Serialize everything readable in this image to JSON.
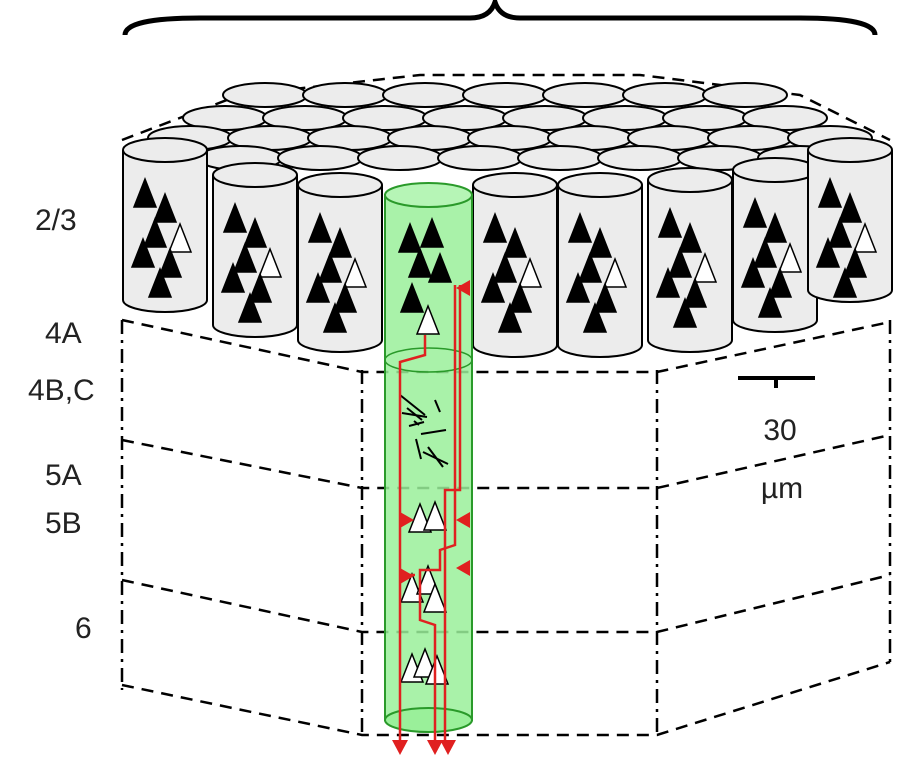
{
  "layers": {
    "l23": "2/3",
    "l4a": "4A",
    "l4bc": "4B,C",
    "l5a": "5A",
    "l5b": "5B",
    "l6": "6"
  },
  "scale_bar": {
    "value": "30",
    "unit": "µm"
  }
}
